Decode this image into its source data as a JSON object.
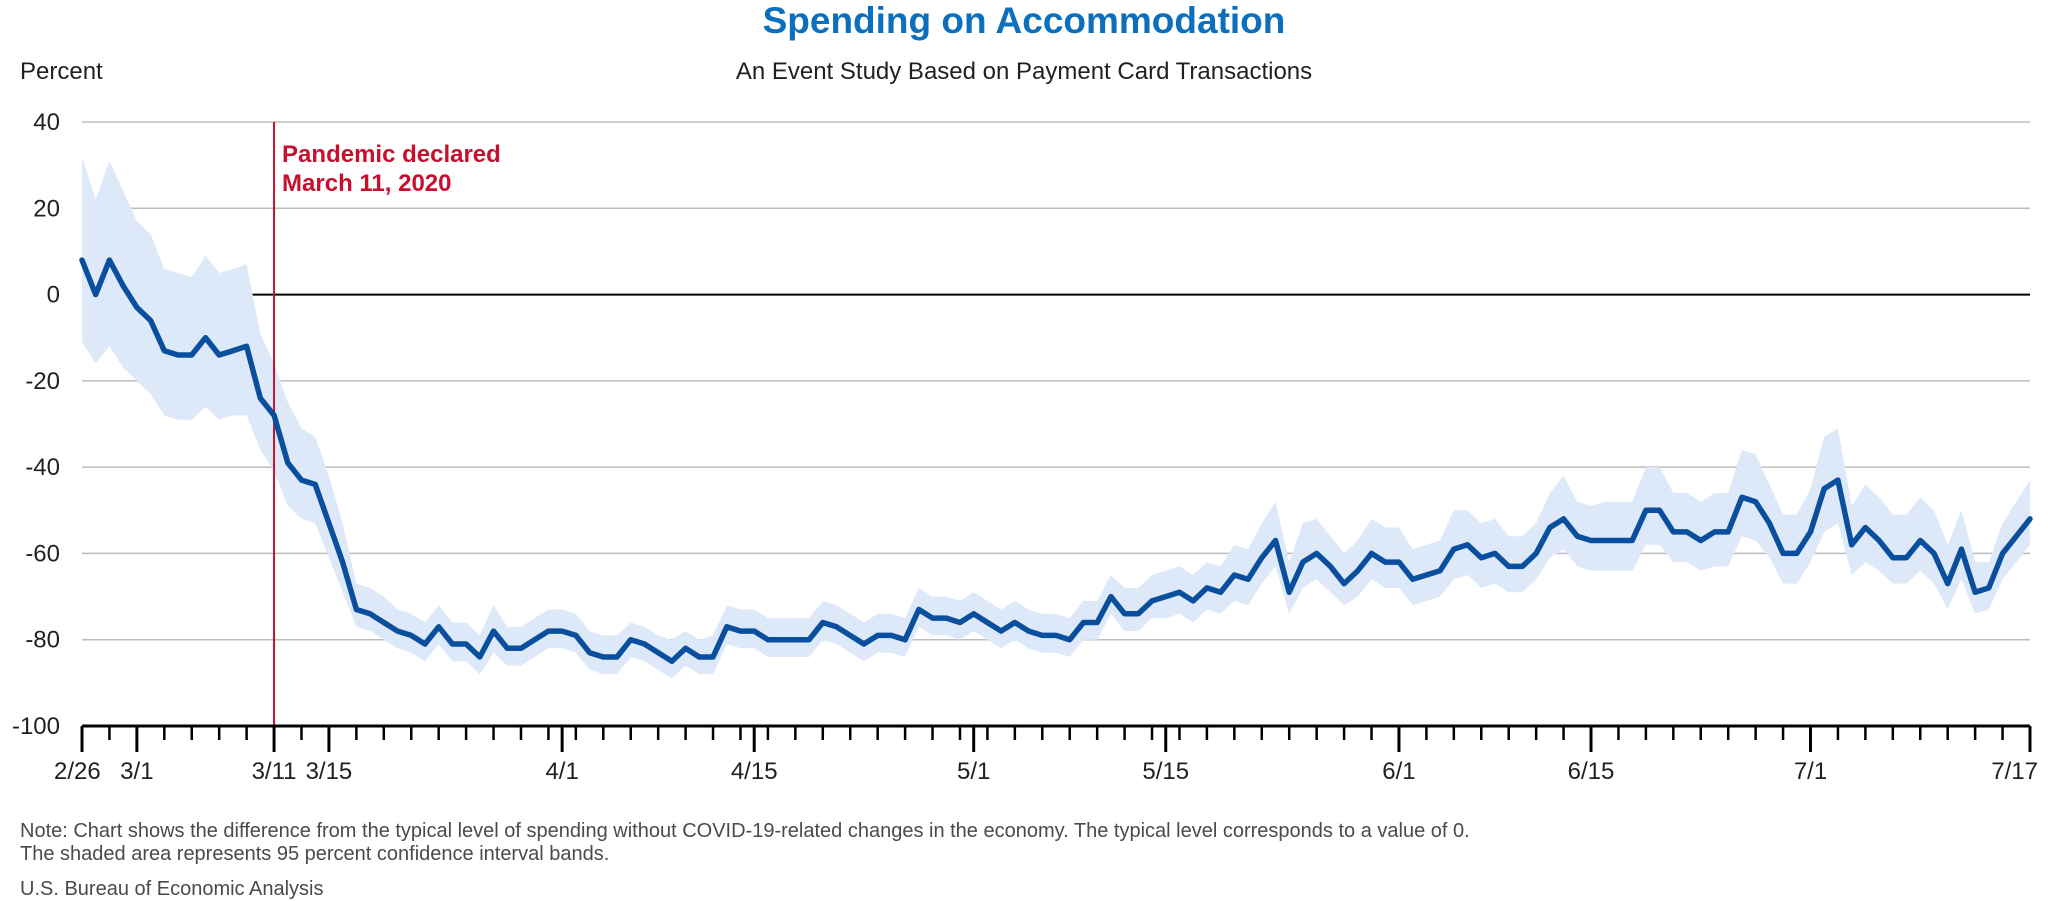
{
  "chart_data": {
    "type": "line",
    "title": "Spending on Accommodation",
    "subtitle": "An Event Study Based on Payment Card Transactions",
    "ylabel": "Percent",
    "ylim": [
      -100,
      40
    ],
    "yticks": [
      40,
      20,
      0,
      -20,
      -40,
      -60,
      -80,
      -100
    ],
    "x_start": "2/26",
    "x_end": "7/17",
    "xtick_labels": [
      {
        "label": "2/26",
        "day": 0
      },
      {
        "label": "3/1",
        "day": 4
      },
      {
        "label": "3/11",
        "day": 14
      },
      {
        "label": "3/15",
        "day": 18
      },
      {
        "label": "4/1",
        "day": 35
      },
      {
        "label": "4/15",
        "day": 49
      },
      {
        "label": "5/1",
        "day": 65
      },
      {
        "label": "5/15",
        "day": 79
      },
      {
        "label": "6/1",
        "day": 96
      },
      {
        "label": "6/15",
        "day": 110
      },
      {
        "label": "7/1",
        "day": 126
      },
      {
        "label": "7/17",
        "day": 142
      }
    ],
    "grid": true,
    "annotation": {
      "line1": "Pandemic declared",
      "line2": "March 11, 2020",
      "day": 14
    },
    "colors": {
      "line": "#0a4f9e",
      "band": "#dde9f8",
      "annotation": "#c8102e",
      "grid": "#bdbdbd",
      "title": "#0b6fbd"
    },
    "series": [
      {
        "values": [
          8,
          0,
          8,
          2,
          -3,
          -6,
          -13,
          -14,
          -14,
          -10,
          -14,
          -13,
          -12,
          -24,
          -28,
          -39,
          -43,
          -44,
          -53,
          -62,
          -73,
          -74,
          -76,
          -78,
          -79,
          -81,
          -77,
          -81,
          -81,
          -84,
          -78,
          -82,
          -82,
          -80,
          -78,
          -78,
          -79,
          -83,
          -84,
          -84,
          -80,
          -81,
          -83,
          -85,
          -82,
          -84,
          -84,
          -77,
          -78,
          -78,
          -80,
          -80,
          -80,
          -80,
          -76,
          -77,
          -79,
          -81,
          -79,
          -79,
          -80,
          -73,
          -75,
          -75,
          -76,
          -74,
          -76,
          -78,
          -76,
          -78,
          -79,
          -79,
          -80,
          -76,
          -76,
          -70,
          -74,
          -74,
          -71,
          -70,
          -69,
          -71,
          -68,
          -69,
          -65,
          -66,
          -61,
          -57,
          -69,
          -62,
          -60,
          -63,
          -67,
          -64,
          -60,
          -62,
          -62,
          -66,
          -65,
          -64,
          -59,
          -58,
          -61,
          -60,
          -63,
          -63,
          -60,
          -54,
          -52,
          -56,
          -57,
          -57,
          -57,
          -57,
          -50,
          -50,
          -55,
          -55,
          -57,
          -55,
          -55,
          -47,
          -48,
          -53,
          -60,
          -60,
          -55,
          -45,
          -43,
          -58,
          -54,
          -57,
          -61,
          -61,
          -57,
          -60,
          -67,
          -59,
          -69,
          -68,
          -60,
          -56,
          -52
        ],
        "upper": [
          32,
          22,
          31,
          24,
          17,
          14,
          6,
          5,
          4,
          9,
          5,
          6,
          7,
          -9,
          -16,
          -25,
          -31,
          -33,
          -42,
          -53,
          -67,
          -68,
          -70,
          -73,
          -74,
          -76,
          -72,
          -76,
          -76,
          -79,
          -72,
          -77,
          -77,
          -75,
          -73,
          -73,
          -74,
          -78,
          -79,
          -79,
          -76,
          -77,
          -79,
          -80,
          -78,
          -80,
          -79,
          -72,
          -73,
          -73,
          -75,
          -75,
          -75,
          -75,
          -71,
          -72,
          -74,
          -76,
          -74,
          -74,
          -75,
          -68,
          -70,
          -70,
          -71,
          -69,
          -71,
          -73,
          -71,
          -73,
          -74,
          -74,
          -75,
          -71,
          -71,
          -65,
          -68,
          -68,
          -65,
          -64,
          -63,
          -65,
          -62,
          -63,
          -58,
          -59,
          -53,
          -48,
          -62,
          -53,
          -52,
          -56,
          -60,
          -57,
          -52,
          -54,
          -54,
          -59,
          -58,
          -57,
          -50,
          -50,
          -53,
          -52,
          -56,
          -56,
          -53,
          -46,
          -42,
          -48,
          -49,
          -48,
          -48,
          -48,
          -40,
          -40,
          -46,
          -46,
          -48,
          -46,
          -46,
          -36,
          -37,
          -44,
          -51,
          -51,
          -45,
          -33,
          -31,
          -49,
          -44,
          -47,
          -51,
          -51,
          -47,
          -50,
          -58,
          -50,
          -62,
          -62,
          -53,
          -48,
          -43
        ],
        "lower": [
          -11,
          -16,
          -12,
          -17,
          -20,
          -23,
          -28,
          -29,
          -29,
          -26,
          -29,
          -28,
          -28,
          -36,
          -41,
          -49,
          -52,
          -53,
          -61,
          -69,
          -77,
          -78,
          -80,
          -82,
          -83,
          -85,
          -81,
          -85,
          -85,
          -88,
          -83,
          -86,
          -86,
          -84,
          -82,
          -82,
          -83,
          -87,
          -88,
          -88,
          -84,
          -85,
          -87,
          -89,
          -86,
          -88,
          -88,
          -81,
          -82,
          -82,
          -84,
          -84,
          -84,
          -84,
          -80,
          -81,
          -83,
          -85,
          -83,
          -83,
          -84,
          -77,
          -79,
          -79,
          -80,
          -78,
          -80,
          -82,
          -80,
          -82,
          -83,
          -83,
          -84,
          -80,
          -80,
          -74,
          -78,
          -78,
          -75,
          -75,
          -74,
          -76,
          -73,
          -74,
          -71,
          -72,
          -67,
          -63,
          -74,
          -68,
          -66,
          -69,
          -72,
          -70,
          -66,
          -68,
          -68,
          -72,
          -71,
          -70,
          -66,
          -65,
          -68,
          -67,
          -69,
          -69,
          -66,
          -61,
          -59,
          -63,
          -64,
          -64,
          -64,
          -64,
          -58,
          -58,
          -62,
          -62,
          -64,
          -63,
          -63,
          -56,
          -57,
          -61,
          -67,
          -67,
          -62,
          -55,
          -53,
          -65,
          -62,
          -64,
          -67,
          -67,
          -64,
          -67,
          -73,
          -66,
          -74,
          -73,
          -66,
          -62,
          -58
        ]
      }
    ]
  },
  "note_line1": "Note: Chart shows the difference from the typical level of spending without COVID-19-related changes in the economy. The typical level corresponds to a value of 0.",
  "note_line2": "The shaded area represents 95 percent confidence interval bands.",
  "source": "U.S. Bureau of Economic Analysis"
}
